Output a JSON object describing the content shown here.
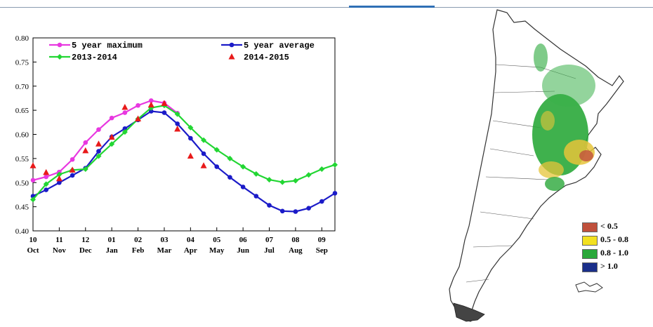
{
  "chart_data": {
    "type": "line",
    "x_ticks": [
      "10",
      "11",
      "12",
      "01",
      "02",
      "03",
      "04",
      "05",
      "06",
      "07",
      "08",
      "09"
    ],
    "x_months": [
      "Oct",
      "Nov",
      "Dec",
      "Jan",
      "Feb",
      "Mar",
      "Apr",
      "May",
      "Jun",
      "Jul",
      "Aug",
      "Sep"
    ],
    "y_ticks": [
      "0.80",
      "0.75",
      "0.70",
      "0.65",
      "0.60",
      "0.55",
      "0.50",
      "0.45",
      "0.40"
    ],
    "ylim": [
      0.4,
      0.8
    ],
    "xlim": [
      0,
      11.5
    ],
    "grid": false,
    "legend_position": "top",
    "series": [
      {
        "name": "5 year maximum",
        "color": "#e838e0",
        "marker": "circle",
        "x": [
          0,
          0.5,
          1,
          1.5,
          2,
          2.5,
          3,
          3.5,
          4,
          4.5,
          5,
          5.5
        ],
        "values": [
          0.505,
          0.512,
          0.522,
          0.548,
          0.583,
          0.61,
          0.634,
          0.645,
          0.66,
          0.67,
          0.665,
          0.644
        ]
      },
      {
        "name": "5 year average",
        "color": "#1b1bc8",
        "marker": "circle",
        "x": [
          0,
          0.5,
          1,
          1.5,
          2,
          2.5,
          3,
          3.5,
          4,
          4.5,
          5,
          5.5,
          6,
          6.5,
          7,
          7.5,
          8,
          8.5,
          9,
          9.5,
          10,
          10.5,
          11,
          11.5
        ],
        "values": [
          0.472,
          0.485,
          0.5,
          0.515,
          0.53,
          0.565,
          0.595,
          0.612,
          0.63,
          0.648,
          0.645,
          0.622,
          0.592,
          0.56,
          0.533,
          0.511,
          0.491,
          0.472,
          0.453,
          0.441,
          0.44,
          0.447,
          0.461,
          0.478
        ]
      },
      {
        "name": "2013-2014",
        "color": "#22d633",
        "marker": "diamond",
        "x": [
          0,
          0.5,
          1,
          1.5,
          2,
          2.5,
          3,
          3.5,
          4,
          4.5,
          5,
          5.5,
          6,
          6.5,
          7,
          7.5,
          8,
          8.5,
          9,
          9.5,
          10,
          10.5,
          11,
          11.5
        ],
        "values": [
          0.465,
          0.497,
          0.517,
          0.526,
          0.528,
          0.555,
          0.58,
          0.605,
          0.632,
          0.655,
          0.66,
          0.642,
          0.614,
          0.588,
          0.568,
          0.55,
          0.533,
          0.518,
          0.506,
          0.501,
          0.504,
          0.516,
          0.528,
          0.537
        ]
      },
      {
        "name": "2014-2015",
        "color": "#e81a1a",
        "marker": "triangle",
        "x": [
          0,
          0.5,
          1,
          1.5,
          2,
          2.5,
          3,
          3.5,
          4,
          4.5,
          5,
          5.5,
          6,
          6.5
        ],
        "values": [
          0.535,
          0.521,
          0.508,
          0.526,
          0.566,
          0.58,
          0.594,
          0.656,
          0.632,
          0.661,
          0.664,
          0.611,
          0.555,
          0.535
        ]
      }
    ]
  },
  "map_legend": [
    {
      "label": "< 0.5",
      "color": "#c0503c"
    },
    {
      "label": "0.5 - 0.8",
      "color": "#f2e020"
    },
    {
      "label": "0.8 - 1.0",
      "color": "#2aa83a"
    },
    {
      "label": "> 1.0",
      "color": "#1a2f8a"
    }
  ]
}
